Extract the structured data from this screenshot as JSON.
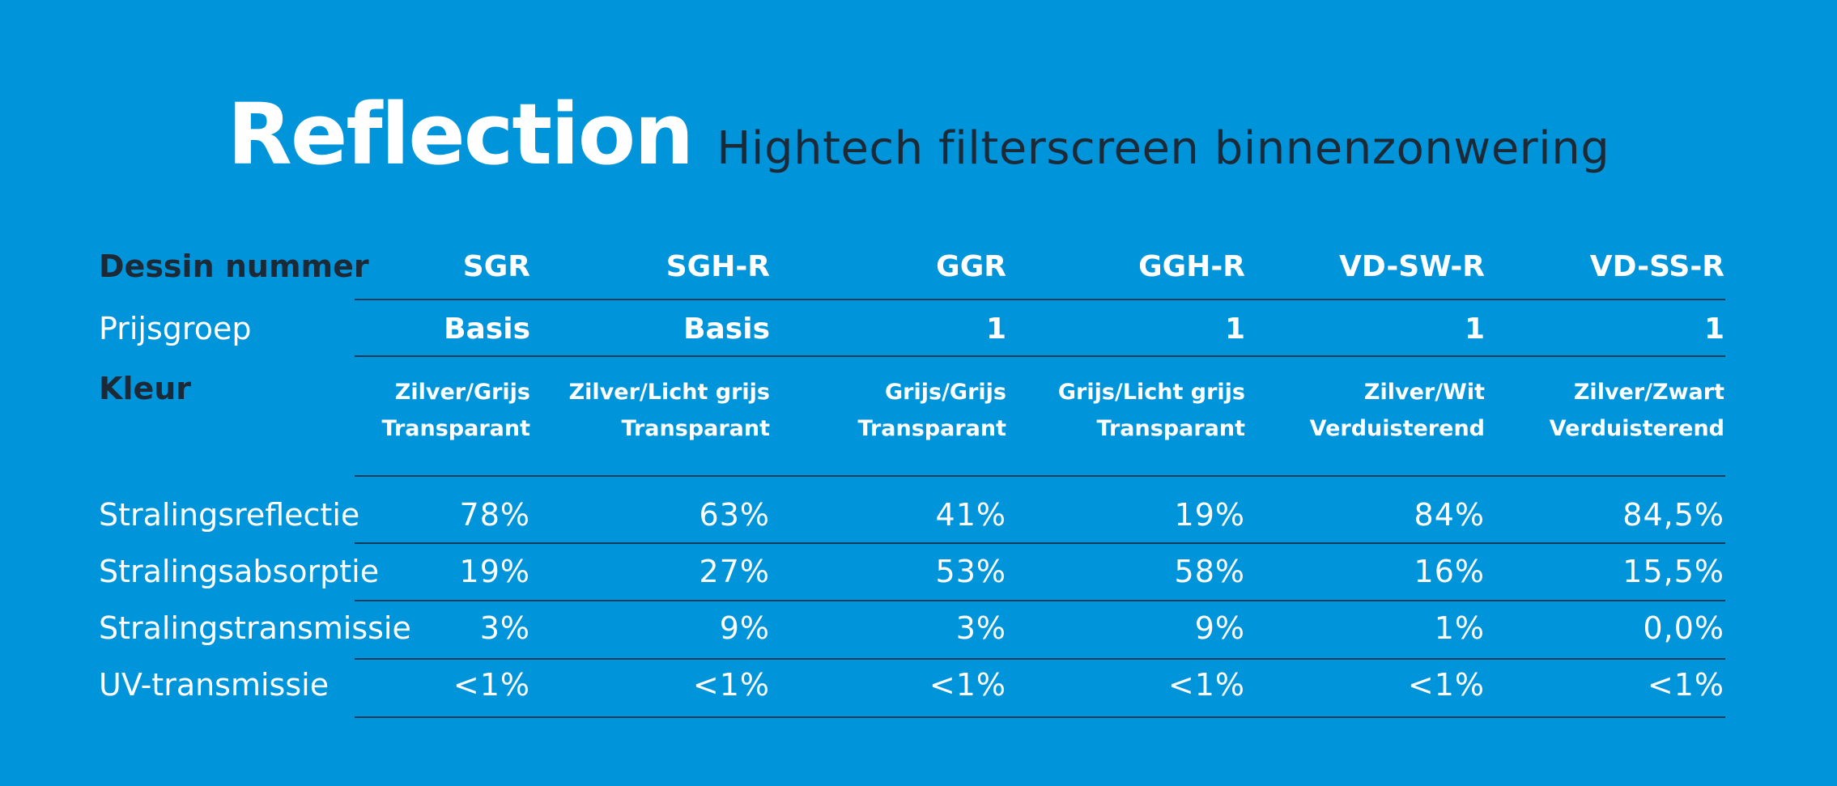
{
  "title": {
    "main": "Reflection",
    "subtitle": "Hightech filterscreen binnenzonwering"
  },
  "table": {
    "row_labels": {
      "dessin": "Dessin nummer",
      "prijsgroep": "Prijsgroep",
      "kleur": "Kleur",
      "reflectie": "Stralingsreflectie",
      "absorptie": "Stralingsabsorptie",
      "transmissie": "Stralingstransmissie",
      "uv": "UV-transmissie"
    },
    "columns": [
      {
        "dessin": "SGR",
        "prijsgroep": "Basis",
        "kleur_line1": "Zilver/Grijs",
        "kleur_line2": "Transparant",
        "reflectie": "78%",
        "absorptie": "19%",
        "transmissie": "3%",
        "uv": "<1%"
      },
      {
        "dessin": "SGH-R",
        "prijsgroep": "Basis",
        "kleur_line1": "Zilver/Licht grijs",
        "kleur_line2": "Transparant",
        "reflectie": "63%",
        "absorptie": "27%",
        "transmissie": "9%",
        "uv": "<1%"
      },
      {
        "dessin": "GGR",
        "prijsgroep": "1",
        "kleur_line1": "Grijs/Grijs",
        "kleur_line2": "Transparant",
        "reflectie": "41%",
        "absorptie": "53%",
        "transmissie": "3%",
        "uv": "<1%"
      },
      {
        "dessin": "GGH-R",
        "prijsgroep": "1",
        "kleur_line1": "Grijs/Licht grijs",
        "kleur_line2": "Transparant",
        "reflectie": "19%",
        "absorptie": "58%",
        "transmissie": "9%",
        "uv": "<1%"
      },
      {
        "dessin": "VD-SW-R",
        "prijsgroep": "1",
        "kleur_line1": "Zilver/Wit",
        "kleur_line2": "Verduisterend",
        "reflectie": "84%",
        "absorptie": "16%",
        "transmissie": "1%",
        "uv": "<1%"
      },
      {
        "dessin": "VD-SS-R",
        "prijsgroep": "1",
        "kleur_line1": "Zilver/Zwart",
        "kleur_line2": "Verduisterend",
        "reflectie": "84,5%",
        "absorptie": "15,5%",
        "transmissie": "0,0%",
        "uv": "<1%"
      }
    ]
  },
  "colors": {
    "background": "#0095DB",
    "text_light": "#FFFFFF",
    "text_dark": "#1C2A38",
    "rule": "#0C3D5E"
  }
}
